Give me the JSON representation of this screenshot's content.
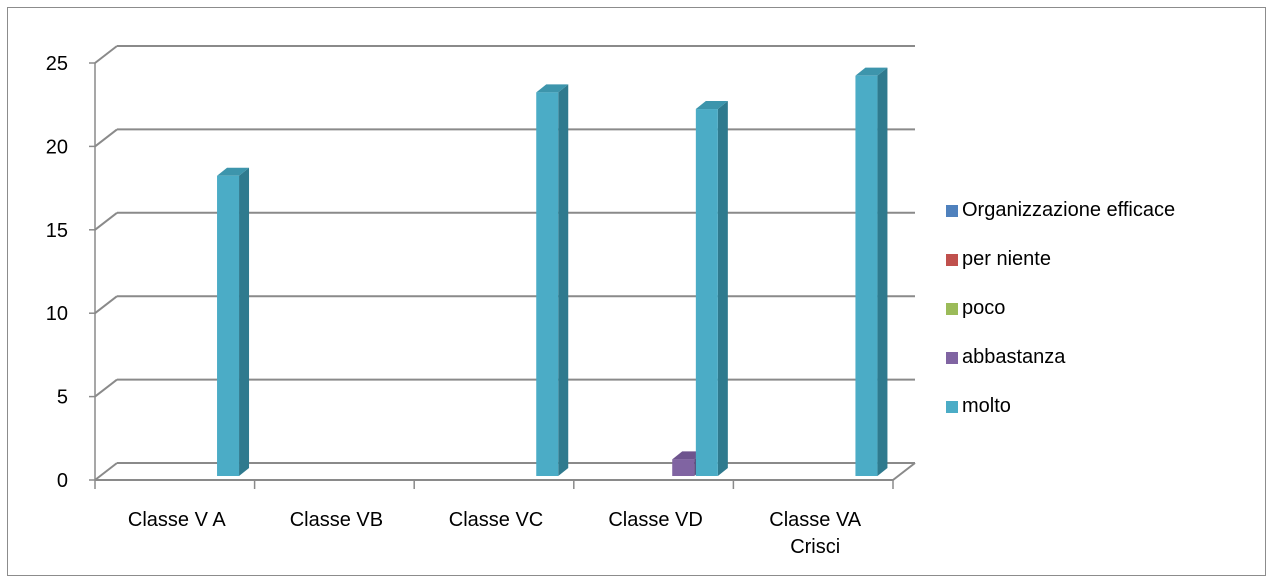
{
  "chart_data": {
    "type": "bar",
    "categories": [
      [
        "Classe V A"
      ],
      [
        "Classe VB"
      ],
      [
        "Classe VC"
      ],
      [
        "Classe VD"
      ],
      [
        "Classe VA",
        "Crisci"
      ]
    ],
    "series": [
      {
        "name": "Organizzazione efficace",
        "color": "#4F81BD",
        "side": "#2E5A8C",
        "top": "#3C6CA8",
        "values": [
          0,
          0,
          0,
          0,
          0
        ]
      },
      {
        "name": "per niente",
        "color": "#C0504D",
        "side": "#8C2E2C",
        "top": "#A43E3B",
        "values": [
          0,
          0,
          0,
          0,
          0
        ]
      },
      {
        "name": "poco",
        "color": "#9BBB59",
        "side": "#6E8A3A",
        "top": "#86A448",
        "values": [
          0,
          0,
          0,
          0,
          0
        ]
      },
      {
        "name": "abbastanza",
        "color": "#8064A2",
        "side": "#5B4478",
        "top": "#6E548E",
        "values": [
          0,
          0,
          0,
          1,
          0
        ]
      },
      {
        "name": "molto",
        "color": "#4BACC6",
        "side": "#2F7A8E",
        "top": "#3D95AC",
        "values": [
          18,
          0,
          23,
          22,
          24
        ]
      }
    ],
    "yticks": [
      "0",
      "5",
      "10",
      "15",
      "20",
      "25"
    ],
    "ylim": [
      0,
      25
    ],
    "grid": true,
    "legend_position": "right"
  }
}
